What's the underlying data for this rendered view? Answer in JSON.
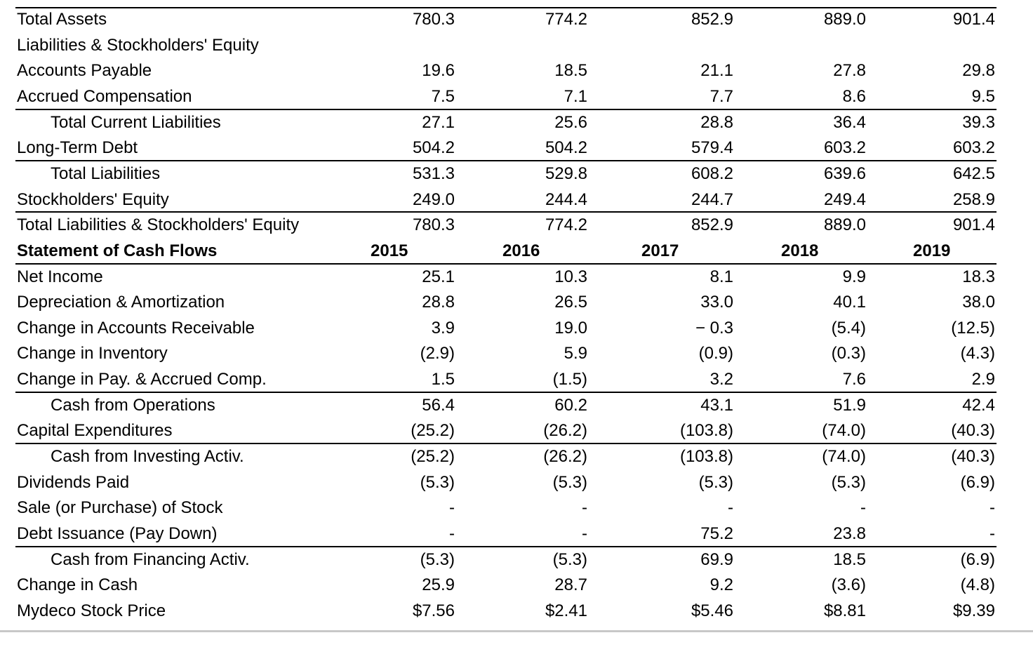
{
  "table": {
    "rows": [
      [
        "Total Assets",
        "780.3",
        "774.2",
        "852.9",
        "889.0",
        "901.4"
      ],
      [
        "Liabilities & Stockholders' Equity"
      ],
      [
        "Accounts Payable",
        "19.6",
        "18.5",
        "21.1",
        "27.8",
        "29.8"
      ],
      [
        "Accrued Compensation",
        "7.5",
        "7.1",
        "7.7",
        "8.6",
        "9.5"
      ],
      [
        "Total Current Liabilities",
        "27.1",
        "25.6",
        "28.8",
        "36.4",
        "39.3"
      ],
      [
        "Long-Term Debt",
        "504.2",
        "504.2",
        "579.4",
        "603.2",
        "603.2"
      ],
      [
        "Total Liabilities",
        "531.3",
        "529.8",
        "608.2",
        "639.6",
        "642.5"
      ],
      [
        "Stockholders' Equity",
        "249.0",
        "244.4",
        "244.7",
        "249.4",
        "258.9"
      ],
      [
        "Total Liabilities & Stockholders' Equity",
        "780.3",
        "774.2",
        "852.9",
        "889.0",
        "901.4"
      ],
      [
        "Statement of Cash Flows",
        "2015",
        "2016",
        "2017",
        "2018",
        "2019"
      ],
      [
        "Net Income",
        "25.1",
        "10.3",
        "8.1",
        "9.9",
        "18.3"
      ],
      [
        "Depreciation & Amortization",
        "28.8",
        "26.5",
        "33.0",
        "40.1",
        "38.0"
      ],
      [
        "Change in Accounts Receivable",
        "3.9",
        "19.0",
        "− 0.3",
        "(5.4)",
        "(12.5)"
      ],
      [
        "Change in Inventory",
        "(2.9)",
        "5.9",
        "(0.9)",
        "(0.3)",
        "(4.3)"
      ],
      [
        "Change in Pay. & Accrued Comp.",
        "1.5",
        "(1.5)",
        "3.2",
        "7.6",
        "2.9"
      ],
      [
        "Cash from Operations",
        "56.4",
        "60.2",
        "43.1",
        "51.9",
        "42.4"
      ],
      [
        "Capital Expenditures",
        "(25.2)",
        "(26.2)",
        "(103.8)",
        "(74.0)",
        "(40.3)"
      ],
      [
        "Cash from Investing Activ.",
        "(25.2)",
        "(26.2)",
        "(103.8)",
        "(74.0)",
        "(40.3)"
      ],
      [
        "Dividends Paid",
        "(5.3)",
        "(5.3)",
        "(5.3)",
        "(5.3)",
        "(6.9)"
      ],
      [
        "Sale (or Purchase) of Stock",
        "-",
        "-",
        "-",
        "-",
        "-"
      ],
      [
        "Debt Issuance (Pay Down)",
        "-",
        "-",
        "75.2",
        "23.8",
        "-"
      ],
      [
        "Cash from Financing Activ.",
        "(5.3)",
        "(5.3)",
        "69.9",
        "18.5",
        "(6.9)"
      ],
      [
        "Change in Cash",
        "25.9",
        "28.7",
        "9.2",
        "(3.6)",
        "(4.8)"
      ],
      [
        "Mydeco Stock Price",
        "$7.56",
        "$2.41",
        "$5.46",
        "$8.81",
        "$9.39"
      ]
    ]
  }
}
